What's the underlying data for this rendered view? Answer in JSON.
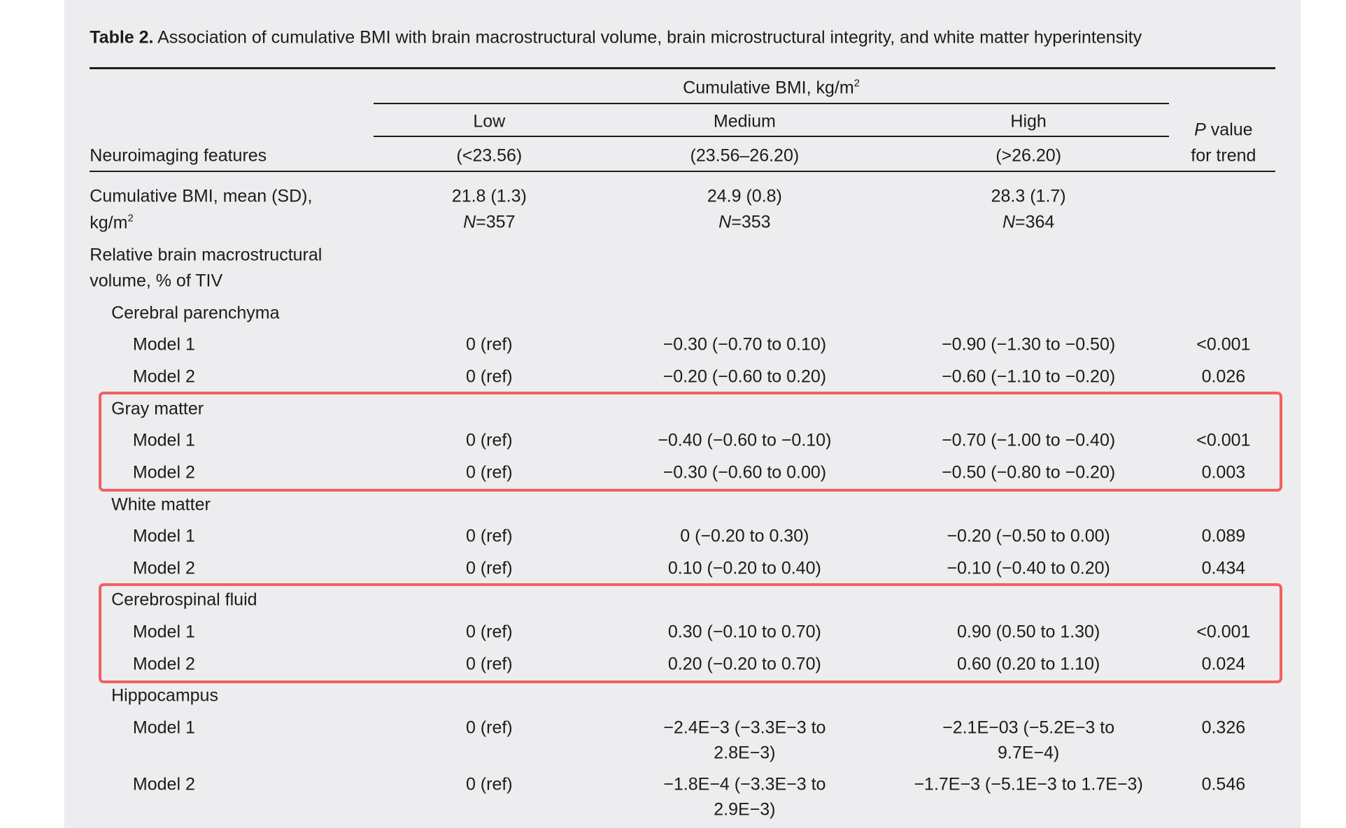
{
  "table": {
    "caption": {
      "label": "Table 2.",
      "text": "Association of cumulative BMI with brain macrostructural volume, brain microstructural integrity, and white matter hyperintensity"
    },
    "header": {
      "stub": "Neuroimaging features",
      "group": {
        "text": "Cumulative BMI, kg/m",
        "sup": "2"
      },
      "columns": [
        {
          "name": "Low",
          "range": "(<23.56)"
        },
        {
          "name": "Medium",
          "range": "(23.56–26.20)"
        },
        {
          "name": "High",
          "range": "(>26.20)"
        }
      ],
      "p_value": {
        "symbol": "P",
        "text": "value",
        "line2": "for trend"
      }
    },
    "summary": {
      "label": [
        "Cumulative BMI, mean (SD),",
        "kg/m"
      ],
      "sup": "2",
      "cells": [
        {
          "mean": "21.8 (1.3)",
          "n_symbol": "N",
          "n": "=357"
        },
        {
          "mean": "24.9 (0.8)",
          "n_symbol": "N",
          "n": "=353"
        },
        {
          "mean": "28.3 (1.7)",
          "n_symbol": "N",
          "n": "=364"
        }
      ]
    },
    "section": {
      "title": [
        "Relative brain macrostructural",
        "volume, % of TIV"
      ],
      "groups": [
        {
          "name": "Cerebral parenchyma",
          "highlighted": false,
          "models": [
            {
              "label": "Model 1",
              "cells": [
                "0 (ref)",
                "−0.30 (−0.70 to 0.10)",
                "−0.90 (−1.30 to −0.50)",
                "<0.001"
              ]
            },
            {
              "label": "Model 2",
              "cells": [
                "0 (ref)",
                "−0.20 (−0.60 to 0.20)",
                "−0.60 (−1.10 to −0.20)",
                "0.026"
              ]
            }
          ]
        },
        {
          "name": "Gray matter",
          "highlighted": true,
          "models": [
            {
              "label": "Model 1",
              "cells": [
                "0 (ref)",
                "−0.40 (−0.60 to −0.10)",
                "−0.70 (−1.00 to −0.40)",
                "<0.001"
              ]
            },
            {
              "label": "Model 2",
              "cells": [
                "0 (ref)",
                "−0.30 (−0.60 to 0.00)",
                "−0.50 (−0.80 to −0.20)",
                "0.003"
              ]
            }
          ]
        },
        {
          "name": "White matter",
          "highlighted": false,
          "models": [
            {
              "label": "Model 1",
              "cells": [
                "0 (ref)",
                "0 (−0.20 to 0.30)",
                "−0.20 (−0.50 to 0.00)",
                "0.089"
              ]
            },
            {
              "label": "Model 2",
              "cells": [
                "0 (ref)",
                "0.10 (−0.20 to 0.40)",
                "−0.10 (−0.40 to 0.20)",
                "0.434"
              ]
            }
          ]
        },
        {
          "name": "Cerebrospinal fluid",
          "highlighted": true,
          "models": [
            {
              "label": "Model 1",
              "cells": [
                "0 (ref)",
                "0.30 (−0.10 to 0.70)",
                "0.90 (0.50 to 1.30)",
                "<0.001"
              ]
            },
            {
              "label": "Model 2",
              "cells": [
                "0 (ref)",
                "0.20 (−0.20 to 0.70)",
                "0.60 (0.20 to 1.10)",
                "0.024"
              ]
            }
          ]
        },
        {
          "name": "Hippocampus",
          "highlighted": false,
          "models": [
            {
              "label": "Model 1",
              "cells": [
                "0 (ref)",
                [
                  "−2.4E−3 (−3.3E−3 to",
                  "2.8E−3)"
                ],
                [
                  "−2.1E−03 (−5.2E−3 to",
                  "9.7E−4)"
                ],
                "0.326"
              ]
            },
            {
              "label": "Model 2",
              "cells": [
                "0 (ref)",
                [
                  "−1.8E−4 (−3.3E−3 to",
                  "2.9E−3)"
                ],
                "−1.7E−3 (−5.1E−3 to 1.7E−3)",
                "0.546"
              ]
            }
          ]
        }
      ]
    }
  }
}
